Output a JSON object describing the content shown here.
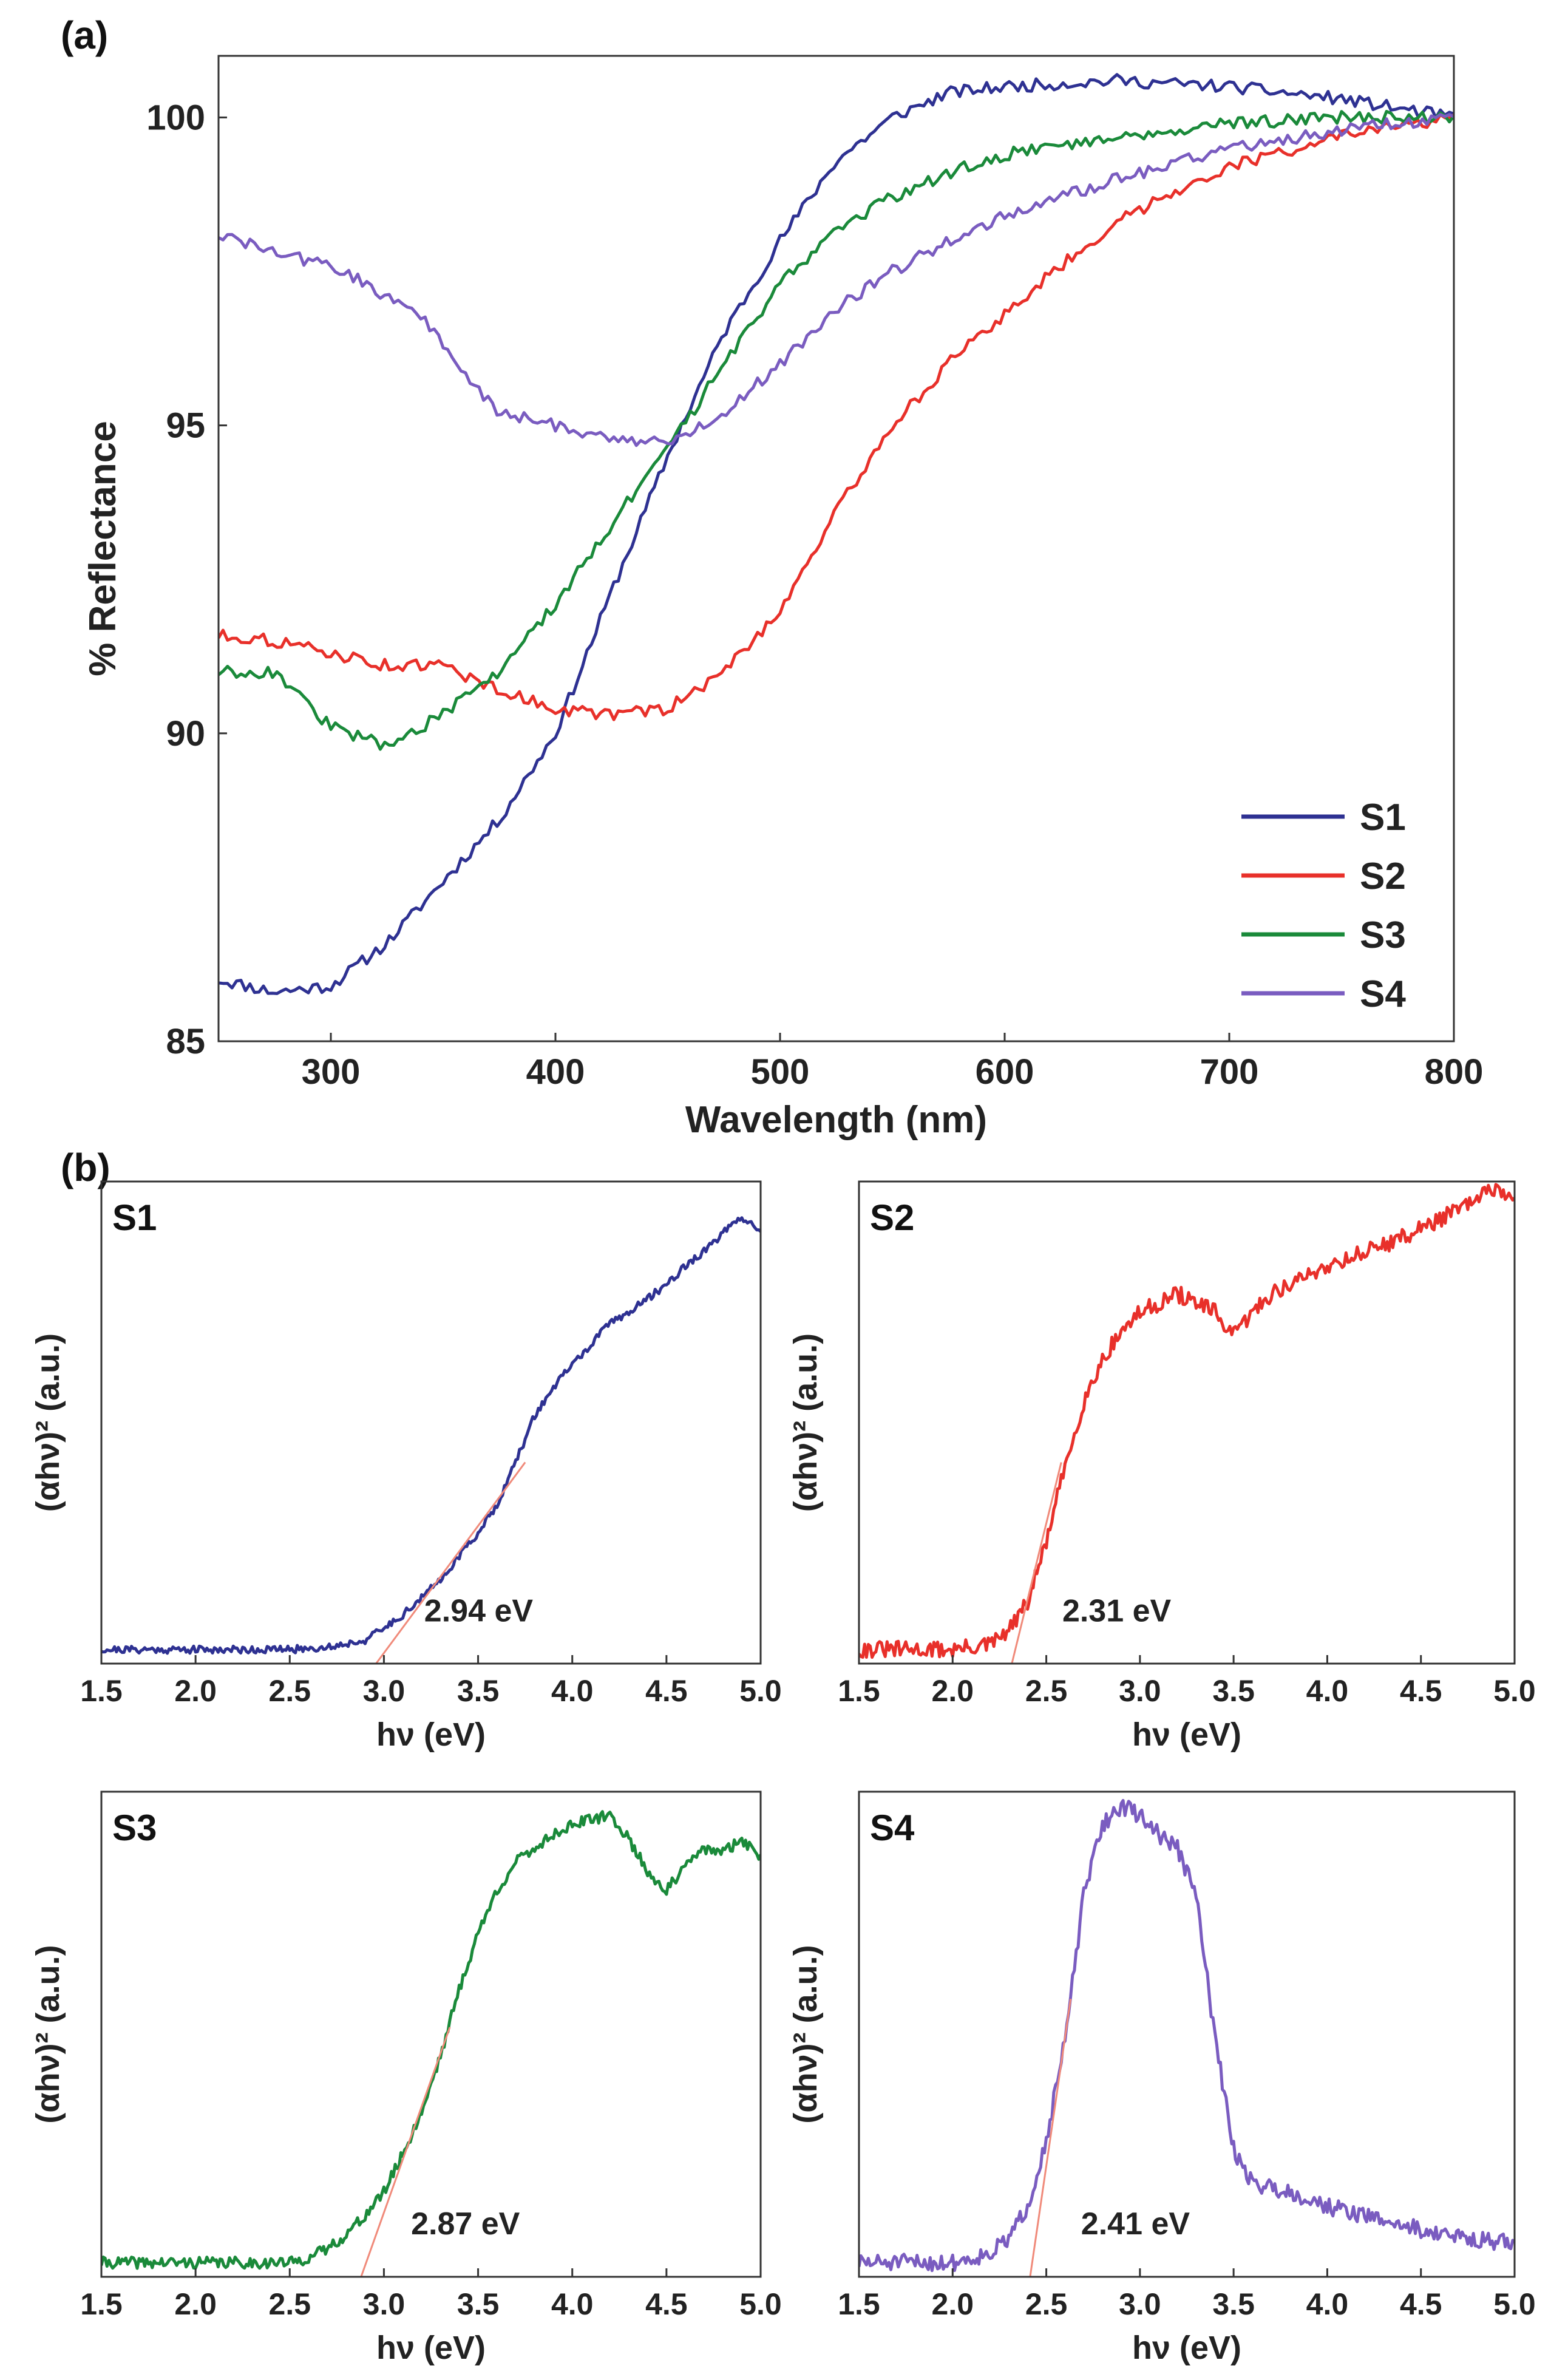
{
  "figure": {
    "panel_a_tag": "(a)",
    "panel_b_tag": "(b)"
  },
  "chart_data": [
    {
      "id": "a",
      "type": "line",
      "xlabel": "Wavelength (nm)",
      "ylabel": "% Reflectance",
      "xlim": [
        250,
        800
      ],
      "ylim": [
        85,
        101
      ],
      "xticks": [
        300,
        400,
        500,
        600,
        700,
        800
      ],
      "xtick_labels": [
        "300",
        "400",
        "500",
        "600",
        "700",
        "800"
      ],
      "yticks": [
        85,
        90,
        95,
        100
      ],
      "ytick_labels": [
        "85",
        "90",
        "95",
        "100"
      ],
      "legend_position": "bottom-right",
      "series": [
        {
          "name": "S1",
          "color": "#2e3192",
          "x": [
            250,
            275,
            300,
            325,
            350,
            375,
            400,
            425,
            450,
            475,
            500,
            525,
            550,
            575,
            600,
            650,
            700,
            750,
            800
          ],
          "y": [
            86.0,
            85.8,
            85.9,
            86.6,
            87.6,
            88.6,
            90.0,
            92.3,
            94.5,
            96.5,
            98.0,
            99.3,
            100.0,
            100.4,
            100.5,
            100.6,
            100.5,
            100.3,
            100.0
          ]
        },
        {
          "name": "S2",
          "color": "#e8302a",
          "x": [
            250,
            275,
            300,
            325,
            350,
            375,
            400,
            425,
            450,
            475,
            500,
            525,
            550,
            575,
            600,
            625,
            650,
            675,
            700,
            750,
            800
          ],
          "y": [
            91.6,
            91.5,
            91.3,
            91.1,
            91.1,
            90.7,
            90.4,
            90.3,
            90.4,
            91.0,
            92.0,
            93.6,
            95.0,
            96.0,
            96.8,
            97.6,
            98.3,
            98.8,
            99.2,
            99.7,
            100.0
          ]
        },
        {
          "name": "S3",
          "color": "#1a8a3a",
          "x": [
            250,
            275,
            300,
            325,
            350,
            375,
            400,
            425,
            450,
            475,
            500,
            525,
            550,
            575,
            600,
            650,
            700,
            750,
            800
          ],
          "y": [
            91.0,
            91.0,
            90.1,
            89.8,
            90.3,
            91.0,
            92.1,
            93.4,
            94.6,
            96.0,
            97.3,
            98.2,
            98.7,
            99.1,
            99.4,
            99.7,
            99.9,
            100.0,
            100.0
          ]
        },
        {
          "name": "S4",
          "color": "#7a5cc0",
          "x": [
            250,
            275,
            300,
            325,
            340,
            360,
            375,
            400,
            425,
            450,
            475,
            500,
            525,
            550,
            575,
            600,
            650,
            700,
            750,
            800
          ],
          "y": [
            98.1,
            97.8,
            97.6,
            97.1,
            96.8,
            95.8,
            95.2,
            95.0,
            94.8,
            94.7,
            95.2,
            96.0,
            96.9,
            97.5,
            98.0,
            98.4,
            99.0,
            99.5,
            99.8,
            100.0
          ]
        }
      ]
    },
    {
      "id": "b1",
      "type": "line",
      "label": "S1",
      "xlabel": "hν (eV)",
      "ylabel": "(αhν)² (a.u.)",
      "xlim": [
        1.5,
        5.0
      ],
      "ylim": [
        -0.03,
        1.0
      ],
      "xticks": [
        1.5,
        2.0,
        2.5,
        3.0,
        3.5,
        4.0,
        4.5,
        5.0
      ],
      "xtick_labels": [
        "1.5",
        "2.0",
        "2.5",
        "3.0",
        "3.5",
        "4.0",
        "4.5",
        "5.0"
      ],
      "annotation": "2.94 eV",
      "bandgap": 2.94,
      "fit_end": [
        3.75,
        0.4
      ],
      "series": [
        {
          "name": "S1",
          "color": "#2e3192",
          "x": [
            1.5,
            2.0,
            2.5,
            2.7,
            2.9,
            3.0,
            3.1,
            3.2,
            3.3,
            3.4,
            3.5,
            3.6,
            3.7,
            3.8,
            3.9,
            4.0,
            4.1,
            4.2,
            4.3,
            4.4,
            4.5,
            4.6,
            4.7,
            4.8,
            4.9,
            5.0
          ],
          "y": [
            0.0,
            0.0,
            0.0,
            0.005,
            0.02,
            0.045,
            0.075,
            0.11,
            0.15,
            0.2,
            0.25,
            0.31,
            0.4,
            0.5,
            0.56,
            0.61,
            0.65,
            0.7,
            0.72,
            0.75,
            0.78,
            0.82,
            0.85,
            0.89,
            0.92,
            0.9
          ]
        }
      ]
    },
    {
      "id": "b2",
      "type": "line",
      "label": "S2",
      "xlabel": "hν (eV)",
      "ylabel": "(αhν)² (a.u.)",
      "xlim": [
        1.5,
        5.0
      ],
      "ylim": [
        -0.03,
        1.0
      ],
      "xticks": [
        1.5,
        2.0,
        2.5,
        3.0,
        3.5,
        4.0,
        4.5,
        5.0
      ],
      "xtick_labels": [
        "1.5",
        "2.0",
        "2.5",
        "3.0",
        "3.5",
        "4.0",
        "4.5",
        "5.0"
      ],
      "annotation": "2.31 eV",
      "bandgap": 2.31,
      "fit_end": [
        2.58,
        0.4
      ],
      "series": [
        {
          "name": "S2",
          "color": "#e8302a",
          "x": [
            1.5,
            2.0,
            2.2,
            2.3,
            2.4,
            2.5,
            2.6,
            2.7,
            2.8,
            2.9,
            3.0,
            3.1,
            3.2,
            3.3,
            3.4,
            3.5,
            3.6,
            3.7,
            3.8,
            4.0,
            4.2,
            4.4,
            4.6,
            4.8,
            4.9,
            5.0
          ],
          "y": [
            0.0,
            0.0,
            0.01,
            0.04,
            0.1,
            0.23,
            0.39,
            0.53,
            0.62,
            0.68,
            0.72,
            0.74,
            0.76,
            0.74,
            0.72,
            0.67,
            0.72,
            0.76,
            0.78,
            0.82,
            0.85,
            0.88,
            0.92,
            0.96,
            0.99,
            0.95
          ]
        }
      ]
    },
    {
      "id": "b3",
      "type": "line",
      "label": "S3",
      "xlabel": "hν (eV)",
      "ylabel": "(αhν)² (a.u.)",
      "xlim": [
        1.5,
        5.0
      ],
      "ylim": [
        -0.03,
        1.0
      ],
      "xticks": [
        1.5,
        2.0,
        2.5,
        3.0,
        3.5,
        4.0,
        4.5,
        5.0
      ],
      "xtick_labels": [
        "1.5",
        "2.0",
        "2.5",
        "3.0",
        "3.5",
        "4.0",
        "4.5",
        "5.0"
      ],
      "annotation": "2.87 eV",
      "bandgap": 2.87,
      "fit_end": [
        3.35,
        0.5
      ],
      "series": [
        {
          "name": "S3",
          "color": "#1a8a3a",
          "x": [
            1.5,
            2.0,
            2.5,
            2.6,
            2.7,
            2.8,
            2.9,
            3.0,
            3.1,
            3.2,
            3.3,
            3.4,
            3.5,
            3.6,
            3.7,
            3.8,
            3.9,
            4.0,
            4.1,
            4.2,
            4.3,
            4.4,
            4.5,
            4.6,
            4.7,
            4.8,
            4.9,
            5.0
          ],
          "y": [
            0.0,
            0.0,
            0.0,
            0.01,
            0.03,
            0.06,
            0.1,
            0.15,
            0.23,
            0.32,
            0.44,
            0.58,
            0.7,
            0.79,
            0.85,
            0.88,
            0.91,
            0.93,
            0.94,
            0.95,
            0.9,
            0.83,
            0.79,
            0.84,
            0.88,
            0.87,
            0.9,
            0.86
          ]
        }
      ]
    },
    {
      "id": "b4",
      "type": "line",
      "label": "S4",
      "xlabel": "hν (eV)",
      "ylabel": "(αhν)² (a.u.)",
      "xlim": [
        1.5,
        5.0
      ],
      "ylim": [
        -0.03,
        1.0
      ],
      "xticks": [
        1.5,
        2.0,
        2.5,
        3.0,
        3.5,
        4.0,
        4.5,
        5.0
      ],
      "xtick_labels": [
        "1.5",
        "2.0",
        "2.5",
        "3.0",
        "3.5",
        "4.0",
        "4.5",
        "5.0"
      ],
      "annotation": "2.41 eV",
      "bandgap": 2.41,
      "fit_end": [
        2.63,
        0.56
      ],
      "series": [
        {
          "name": "S4",
          "color": "#7a5cc0",
          "x": [
            1.5,
            2.0,
            2.2,
            2.3,
            2.4,
            2.5,
            2.6,
            2.7,
            2.8,
            2.9,
            3.0,
            3.1,
            3.2,
            3.3,
            3.4,
            3.5,
            3.6,
            3.8,
            4.0,
            4.3,
            4.6,
            4.8,
            5.0
          ],
          "y": [
            0.0,
            0.0,
            0.02,
            0.05,
            0.12,
            0.26,
            0.47,
            0.78,
            0.93,
            0.97,
            0.95,
            0.91,
            0.88,
            0.78,
            0.48,
            0.24,
            0.17,
            0.15,
            0.12,
            0.09,
            0.06,
            0.05,
            0.04
          ]
        }
      ]
    }
  ]
}
